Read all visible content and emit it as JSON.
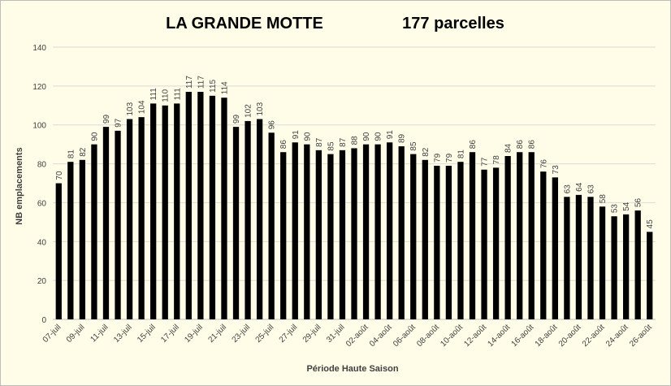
{
  "chart_data": {
    "type": "bar",
    "title": "LA GRANDE MOTTE",
    "subtitle": "177 parcelles",
    "xlabel": "Période Haute Saison",
    "ylabel": "NB emplacements",
    "ylim": [
      0,
      140
    ],
    "yticks": [
      0,
      20,
      40,
      60,
      80,
      100,
      120,
      140
    ],
    "grid": true,
    "legend": "none",
    "bar_color": "#000000",
    "grid_color": "#d9d9d9",
    "categories": [
      "07-juil",
      "08-juil",
      "09-juil",
      "10-juil",
      "11-juil",
      "12-juil",
      "13-juil",
      "14-juil",
      "15-juil",
      "16-juil",
      "17-juil",
      "18-juil",
      "19-juil",
      "20-juil",
      "21-juil",
      "22-juil",
      "23-juil",
      "24-juil",
      "25-juil",
      "26-juil",
      "27-juil",
      "28-juil",
      "29-juil",
      "30-juil",
      "31-juil",
      "01-août",
      "02-août",
      "03-août",
      "04-août",
      "05-août",
      "06-août",
      "07-août",
      "08-août",
      "09-août",
      "10-août",
      "11-août",
      "12-août",
      "13-août",
      "14-août",
      "15-août",
      "16-août",
      "17-août",
      "18-août",
      "19-août",
      "20-août",
      "21-août",
      "22-août",
      "23-août",
      "24-août",
      "25-août",
      "26-août"
    ],
    "values": [
      70,
      81,
      82,
      90,
      99,
      97,
      103,
      104,
      111,
      110,
      111,
      117,
      117,
      115,
      114,
      99,
      102,
      103,
      96,
      86,
      91,
      90,
      87,
      85,
      87,
      88,
      90,
      90,
      91,
      89,
      85,
      82,
      79,
      79,
      81,
      86,
      77,
      78,
      84,
      86,
      86,
      76,
      73,
      63,
      64,
      63,
      58,
      53,
      54,
      56,
      45
    ],
    "tick_label_every": 2
  }
}
